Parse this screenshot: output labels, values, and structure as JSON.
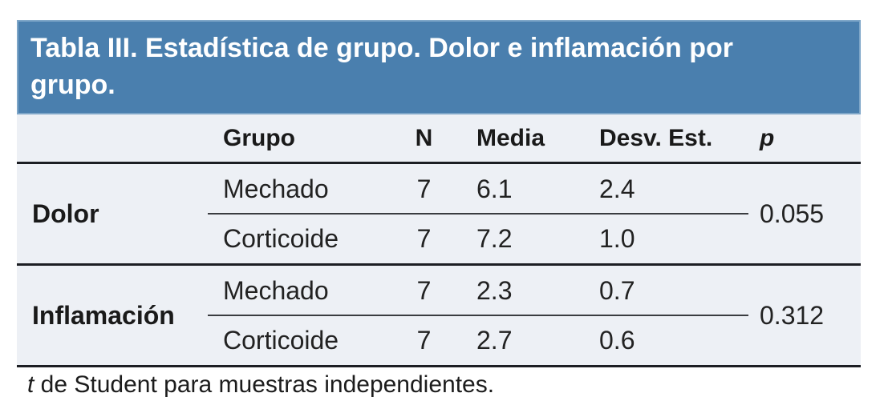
{
  "title": "Tabla III. Estadística de grupo. Dolor e inflamación por grupo.",
  "columns": {
    "grupo": "Grupo",
    "n": "N",
    "media": "Media",
    "desv": "Desv. Est.",
    "p": "p"
  },
  "groups": [
    {
      "label": "Dolor",
      "p": "0.055",
      "rows": [
        {
          "grupo": "Mechado",
          "n": "7",
          "media": "6.1",
          "desv": "2.4"
        },
        {
          "grupo": "Corticoide",
          "n": "7",
          "media": "7.2",
          "desv": "1.0"
        }
      ]
    },
    {
      "label": "Inflamación",
      "p": "0.312",
      "rows": [
        {
          "grupo": "Mechado",
          "n": "7",
          "media": "2.3",
          "desv": "0.7"
        },
        {
          "grupo": "Corticoide",
          "n": "7",
          "media": "2.7",
          "desv": "0.6"
        }
      ]
    }
  ],
  "footnote": {
    "lead_italic": "t",
    "rest": " de Student para muestras independientes."
  },
  "colors": {
    "title_bg": "#4a7fae",
    "title_border": "#7ea6c8",
    "title_text": "#ffffff",
    "body_bg": "#edf0f5",
    "rule_dark": "#1c1e23",
    "rule_divider": "#3a3c40",
    "text": "#222222"
  },
  "chart_data": {
    "type": "table",
    "title": "Tabla III. Estadística de grupo. Dolor e inflamación por grupo.",
    "columns": [
      "",
      "Grupo",
      "N",
      "Media",
      "Desv. Est.",
      "p"
    ],
    "rows": [
      [
        "Dolor",
        "Mechado",
        7,
        6.1,
        2.4,
        0.055
      ],
      [
        "Dolor",
        "Corticoide",
        7,
        7.2,
        1.0,
        0.055
      ],
      [
        "Inflamación",
        "Mechado",
        7,
        2.3,
        0.7,
        0.312
      ],
      [
        "Inflamación",
        "Corticoide",
        7,
        2.7,
        0.6,
        0.312
      ]
    ],
    "footnote": "t de Student para muestras independientes."
  }
}
